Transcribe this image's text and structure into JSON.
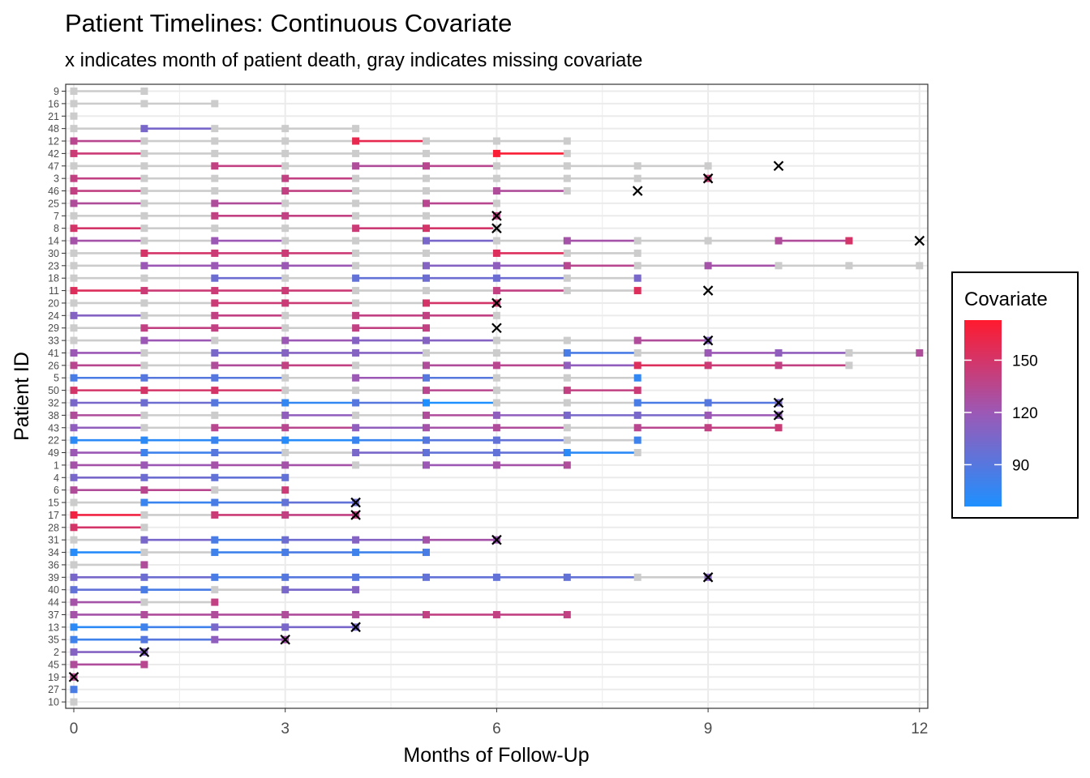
{
  "chart_data": {
    "type": "timeline",
    "title": "Patient Timelines: Continuous Covariate",
    "subtitle": "x indicates month of patient death, gray indicates missing covariate",
    "xlabel": "Months of Follow-Up",
    "ylabel": "Patient ID",
    "xlim": [
      0,
      12
    ],
    "xticks": [
      0,
      3,
      6,
      9,
      12
    ],
    "grid": true,
    "legend": {
      "title": "Covariate",
      "placement": "right",
      "ticks": [
        90,
        120,
        150
      ],
      "range": [
        66,
        173
      ],
      "colors": {
        "low": "#1E90FF",
        "mid": "#9B59B6",
        "high": "#FF1A2E",
        "missing": "#CCCCCC"
      }
    },
    "patients": [
      {
        "id": "9",
        "values": [
          null,
          null
        ]
      },
      {
        "id": "16",
        "values": [
          null,
          null,
          null
        ]
      },
      {
        "id": "21",
        "values": [
          null
        ]
      },
      {
        "id": "48",
        "values": [
          null,
          105,
          null,
          null,
          null
        ]
      },
      {
        "id": "12",
        "values": [
          135,
          null,
          null,
          null,
          160,
          null,
          null,
          null
        ]
      },
      {
        "id": "42",
        "values": [
          145,
          null,
          null,
          null,
          null,
          null,
          170,
          null
        ]
      },
      {
        "id": "47",
        "values": [
          null,
          null,
          140,
          null,
          130,
          135,
          null,
          null,
          null,
          null
        ],
        "death": 10
      },
      {
        "id": "3",
        "values": [
          140,
          null,
          null,
          140,
          null,
          null,
          null,
          null,
          null,
          145
        ],
        "death": 9
      },
      {
        "id": "46",
        "values": [
          140,
          null,
          null,
          140,
          null,
          null,
          130,
          null
        ],
        "death": 8
      },
      {
        "id": "25",
        "values": [
          130,
          null,
          130,
          null,
          null,
          135,
          null
        ]
      },
      {
        "id": "7",
        "values": [
          null,
          null,
          140,
          140,
          null,
          null,
          140
        ],
        "death": 6
      },
      {
        "id": "8",
        "values": [
          150,
          null,
          null,
          null,
          145,
          150,
          null
        ],
        "death": 6
      },
      {
        "id": "14",
        "values": [
          125,
          null,
          120,
          null,
          null,
          105,
          null,
          125,
          null,
          null,
          130,
          150
        ],
        "death": 12
      },
      {
        "id": "30",
        "values": [
          null,
          150,
          145,
          145,
          null,
          null,
          155,
          null,
          null
        ]
      },
      {
        "id": "23",
        "values": [
          null,
          120,
          120,
          120,
          null,
          110,
          115,
          135,
          null,
          125,
          null,
          null,
          null
        ]
      },
      {
        "id": "18",
        "values": [
          null,
          null,
          100,
          null,
          95,
          100,
          100,
          null,
          105
        ]
      },
      {
        "id": "11",
        "values": [
          155,
          145,
          145,
          145,
          null,
          null,
          140,
          null,
          155
        ],
        "death": 9
      },
      {
        "id": "20",
        "values": [
          null,
          null,
          145,
          145,
          null,
          150,
          150
        ],
        "death": 6
      },
      {
        "id": "24",
        "values": [
          110,
          null,
          140,
          null,
          140,
          140,
          null
        ]
      },
      {
        "id": "29",
        "values": [
          null,
          140,
          140,
          null,
          140,
          140
        ],
        "death": 6
      },
      {
        "id": "33",
        "values": [
          null,
          120,
          null,
          120,
          110,
          110,
          null,
          null,
          130,
          110
        ],
        "death": 9
      },
      {
        "id": "41",
        "values": [
          120,
          null,
          105,
          110,
          110,
          null,
          null,
          85,
          null,
          120,
          115,
          null,
          130
        ]
      },
      {
        "id": "26",
        "values": [
          135,
          null,
          130,
          140,
          null,
          130,
          135,
          115,
          155,
          145,
          140,
          null
        ]
      },
      {
        "id": "5",
        "values": [
          85,
          90,
          90,
          null,
          120,
          90,
          null,
          null,
          75
        ]
      },
      {
        "id": "50",
        "values": [
          150,
          150,
          150,
          null,
          null,
          135,
          null,
          140,
          145
        ]
      },
      {
        "id": "32",
        "values": [
          105,
          100,
          90,
          75,
          90,
          66,
          null,
          null,
          85,
          90,
          105
        ],
        "death": 10
      },
      {
        "id": "38",
        "values": [
          130,
          null,
          null,
          115,
          null,
          130,
          115,
          105,
          105,
          120,
          115
        ],
        "death": 10
      },
      {
        "id": "43",
        "values": [
          115,
          null,
          135,
          135,
          115,
          125,
          130,
          null,
          135,
          140,
          145
        ]
      },
      {
        "id": "22",
        "values": [
          72,
          72,
          78,
          70,
          78,
          90,
          95,
          null,
          80
        ]
      },
      {
        "id": "49",
        "values": [
          120,
          80,
          90,
          null,
          105,
          95,
          95,
          72,
          null
        ]
      },
      {
        "id": "1",
        "values": [
          125,
          120,
          125,
          125,
          null,
          120,
          125,
          130
        ]
      },
      {
        "id": "4",
        "values": [
          105,
          100,
          95,
          95
        ]
      },
      {
        "id": "6",
        "values": [
          130,
          135,
          null,
          145
        ]
      },
      {
        "id": "15",
        "values": [
          null,
          78,
          85,
          95,
          100
        ],
        "death": 4
      },
      {
        "id": "17",
        "values": [
          165,
          null,
          145,
          140,
          140
        ],
        "death": 4
      },
      {
        "id": "28",
        "values": [
          150,
          null
        ]
      },
      {
        "id": "31",
        "values": [
          null,
          105,
          85,
          100,
          110,
          125,
          120
        ],
        "death": 6
      },
      {
        "id": "34",
        "values": [
          70,
          null,
          80,
          85,
          80,
          85
        ]
      },
      {
        "id": "36",
        "values": [
          null,
          130
        ]
      },
      {
        "id": "39",
        "values": [
          105,
          100,
          85,
          90,
          90,
          95,
          95,
          95,
          null,
          110
        ],
        "death": 9
      },
      {
        "id": "40",
        "values": [
          95,
          85,
          null,
          105,
          110
        ]
      },
      {
        "id": "44",
        "values": [
          125,
          null,
          140
        ]
      },
      {
        "id": "37",
        "values": [
          125,
          130,
          130,
          130,
          130,
          140,
          140,
          140
        ]
      },
      {
        "id": "13",
        "values": [
          72,
          80,
          105,
          105,
          105
        ],
        "death": 4
      },
      {
        "id": "35",
        "values": [
          80,
          90,
          115,
          125
        ],
        "death": 3
      },
      {
        "id": "2",
        "values": [
          110,
          110
        ],
        "death": 1
      },
      {
        "id": "45",
        "values": [
          130,
          135
        ]
      },
      {
        "id": "19",
        "values": [
          135
        ],
        "death": 0
      },
      {
        "id": "27",
        "values": [
          85
        ]
      },
      {
        "id": "10",
        "values": [
          null
        ]
      }
    ]
  }
}
